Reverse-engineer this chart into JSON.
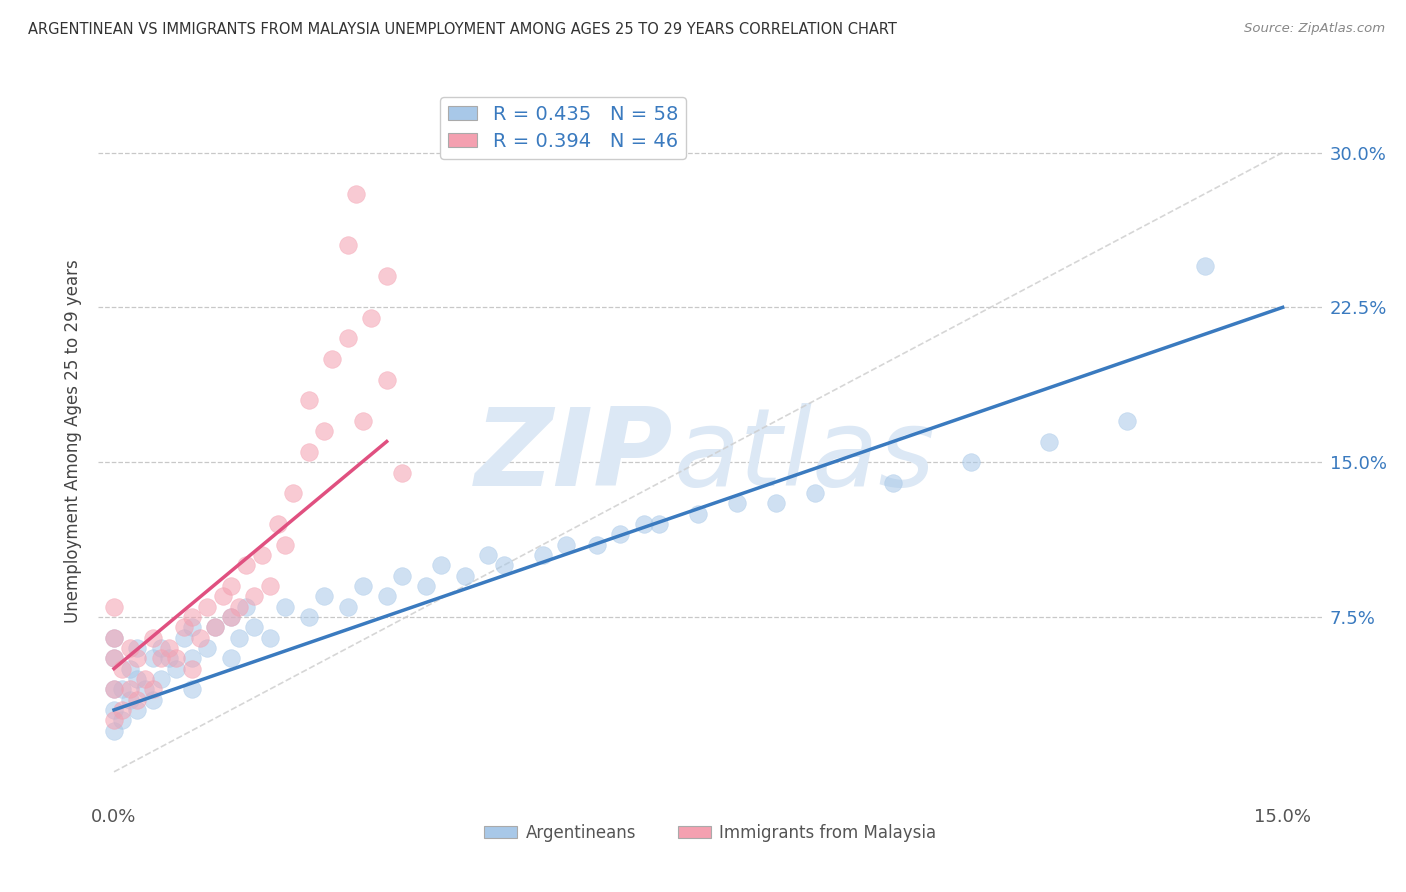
{
  "title": "ARGENTINEAN VS IMMIGRANTS FROM MALAYSIA UNEMPLOYMENT AMONG AGES 25 TO 29 YEARS CORRELATION CHART",
  "source": "Source: ZipAtlas.com",
  "ylabel": "Unemployment Among Ages 25 to 29 years",
  "xlim": [
    -0.002,
    0.155
  ],
  "ylim": [
    -0.015,
    0.335
  ],
  "xticks": [
    0.0,
    0.05,
    0.1,
    0.15
  ],
  "xtick_labels": [
    "0.0%",
    "",
    "",
    "15.0%"
  ],
  "yticks": [
    0.0,
    0.075,
    0.15,
    0.225,
    0.3
  ],
  "ytick_labels_right": [
    "",
    "7.5%",
    "15.0%",
    "22.5%",
    "30.0%"
  ],
  "legend_top_labels": [
    "R = 0.435   N = 58",
    "R = 0.394   N = 46"
  ],
  "legend_bottom_labels": [
    "Argentineans",
    "Immigrants from Malaysia"
  ],
  "R_blue": 0.435,
  "N_blue": 58,
  "R_pink": 0.394,
  "N_pink": 46,
  "blue_dot_color": "#a8c8e8",
  "pink_dot_color": "#f4a0b0",
  "blue_line_color": "#3a7abf",
  "pink_line_color": "#e05080",
  "gray_diag_color": "#cccccc",
  "watermark_color": "#dce8f5",
  "background_color": "#ffffff",
  "grid_color": "#c8c8c8",
  "blue_x": [
    0.0,
    0.0,
    0.0,
    0.0,
    0.0,
    0.001,
    0.001,
    0.002,
    0.002,
    0.003,
    0.003,
    0.003,
    0.004,
    0.005,
    0.005,
    0.006,
    0.006,
    0.007,
    0.008,
    0.009,
    0.01,
    0.01,
    0.01,
    0.012,
    0.013,
    0.015,
    0.015,
    0.016,
    0.017,
    0.018,
    0.02,
    0.022,
    0.025,
    0.027,
    0.03,
    0.032,
    0.035,
    0.037,
    0.04,
    0.042,
    0.045,
    0.048,
    0.05,
    0.055,
    0.058,
    0.062,
    0.065,
    0.068,
    0.07,
    0.075,
    0.08,
    0.085,
    0.09,
    0.1,
    0.11,
    0.12,
    0.13,
    0.14
  ],
  "blue_y": [
    0.02,
    0.03,
    0.04,
    0.055,
    0.065,
    0.025,
    0.04,
    0.035,
    0.05,
    0.03,
    0.045,
    0.06,
    0.04,
    0.035,
    0.055,
    0.045,
    0.06,
    0.055,
    0.05,
    0.065,
    0.04,
    0.055,
    0.07,
    0.06,
    0.07,
    0.055,
    0.075,
    0.065,
    0.08,
    0.07,
    0.065,
    0.08,
    0.075,
    0.085,
    0.08,
    0.09,
    0.085,
    0.095,
    0.09,
    0.1,
    0.095,
    0.105,
    0.1,
    0.105,
    0.11,
    0.11,
    0.115,
    0.12,
    0.12,
    0.125,
    0.13,
    0.13,
    0.135,
    0.14,
    0.15,
    0.16,
    0.17,
    0.245
  ],
  "pink_x": [
    0.0,
    0.0,
    0.0,
    0.0,
    0.0,
    0.001,
    0.001,
    0.002,
    0.002,
    0.003,
    0.003,
    0.004,
    0.005,
    0.005,
    0.006,
    0.007,
    0.008,
    0.009,
    0.01,
    0.01,
    0.011,
    0.012,
    0.013,
    0.014,
    0.015,
    0.015,
    0.016,
    0.017,
    0.018,
    0.019,
    0.02,
    0.021,
    0.022,
    0.023,
    0.025,
    0.025,
    0.027,
    0.028,
    0.03,
    0.03,
    0.031,
    0.032,
    0.033,
    0.035,
    0.035,
    0.037
  ],
  "pink_y": [
    0.025,
    0.04,
    0.055,
    0.065,
    0.08,
    0.03,
    0.05,
    0.04,
    0.06,
    0.035,
    0.055,
    0.045,
    0.04,
    0.065,
    0.055,
    0.06,
    0.055,
    0.07,
    0.05,
    0.075,
    0.065,
    0.08,
    0.07,
    0.085,
    0.075,
    0.09,
    0.08,
    0.1,
    0.085,
    0.105,
    0.09,
    0.12,
    0.11,
    0.135,
    0.155,
    0.18,
    0.165,
    0.2,
    0.21,
    0.255,
    0.28,
    0.17,
    0.22,
    0.19,
    0.24,
    0.145
  ]
}
